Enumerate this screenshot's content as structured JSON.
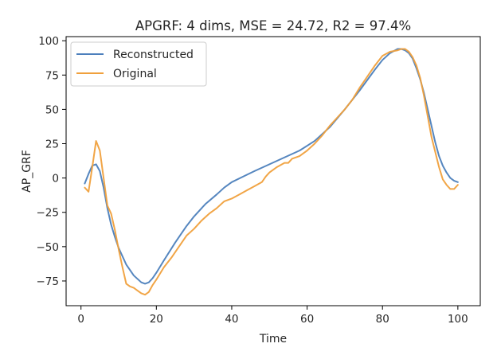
{
  "chart_data": {
    "type": "line",
    "title": "APGRF: 4 dims, MSE = 24.72, R2 = 97.4%",
    "xlabel": "Time",
    "ylabel": "AP_GRF",
    "xlim": [
      -3.95,
      105.95
    ],
    "ylim": [
      -93,
      103
    ],
    "x_ticks": [
      0,
      20,
      40,
      60,
      80,
      100
    ],
    "y_ticks": [
      -75,
      -50,
      -25,
      0,
      25,
      50,
      75,
      100
    ],
    "x_tick_labels": [
      "0",
      "20",
      "40",
      "60",
      "80",
      "100"
    ],
    "y_tick_labels": [
      "−75",
      "−50",
      "−25",
      "0",
      "25",
      "50",
      "75",
      "100"
    ],
    "grid": false,
    "legend": {
      "placement": "top-left"
    },
    "series": [
      {
        "name": "Reconstructed",
        "color": "#4c7fbc",
        "x": [
          1,
          2,
          3,
          4,
          5,
          6,
          7,
          8,
          9,
          10,
          12,
          14,
          16,
          17,
          18,
          19,
          20,
          22,
          25,
          28,
          30,
          33,
          36,
          38,
          40,
          43,
          46,
          50,
          54,
          58,
          62,
          66,
          70,
          74,
          78,
          80,
          82,
          84,
          85,
          86,
          87,
          88,
          89,
          90,
          91,
          92,
          93,
          94,
          95,
          96,
          97,
          98,
          99,
          100
        ],
        "y": [
          -4,
          3,
          9,
          10,
          5,
          -7,
          -22,
          -34,
          -43,
          -51,
          -63,
          -71,
          -76,
          -77,
          -76,
          -73,
          -69,
          -60,
          -47,
          -35,
          -28,
          -19,
          -12,
          -7,
          -3,
          1,
          5,
          10,
          15,
          20,
          27,
          37,
          50,
          64,
          79,
          86,
          91,
          94,
          94,
          93,
          91,
          87,
          80,
          72,
          62,
          50,
          38,
          26,
          16,
          9,
          4,
          0,
          -2,
          -3
        ]
      },
      {
        "name": "Original",
        "color": "#f0a03c",
        "x": [
          1,
          2,
          3,
          4,
          5,
          6,
          7,
          8,
          9,
          10,
          11,
          12,
          13,
          14,
          15,
          16,
          17,
          18,
          19,
          20,
          22,
          24,
          26,
          28,
          30,
          32,
          34,
          36,
          38,
          40,
          42,
          44,
          46,
          48,
          49,
          50,
          52,
          54,
          55,
          56,
          58,
          60,
          62,
          64,
          66,
          68,
          70,
          72,
          74,
          76,
          78,
          80,
          82,
          84,
          85,
          86,
          87,
          88,
          89,
          90,
          91,
          92,
          93,
          94,
          95,
          96,
          97,
          98,
          99,
          100
        ],
        "y": [
          -7,
          -10,
          8,
          27,
          20,
          0,
          -20,
          -26,
          -38,
          -52,
          -65,
          -77,
          -79,
          -80,
          -82,
          -84,
          -85,
          -83,
          -78,
          -74,
          -65,
          -58,
          -50,
          -42,
          -37,
          -31,
          -26,
          -22,
          -17,
          -15,
          -12,
          -9,
          -6,
          -3,
          1,
          4,
          8,
          11,
          11,
          14,
          16,
          20,
          25,
          31,
          38,
          44,
          50,
          57,
          66,
          74,
          82,
          89,
          92,
          93,
          94,
          94,
          92,
          88,
          82,
          73,
          60,
          45,
          30,
          19,
          8,
          -1,
          -5,
          -8,
          -8,
          -5
        ]
      }
    ]
  }
}
